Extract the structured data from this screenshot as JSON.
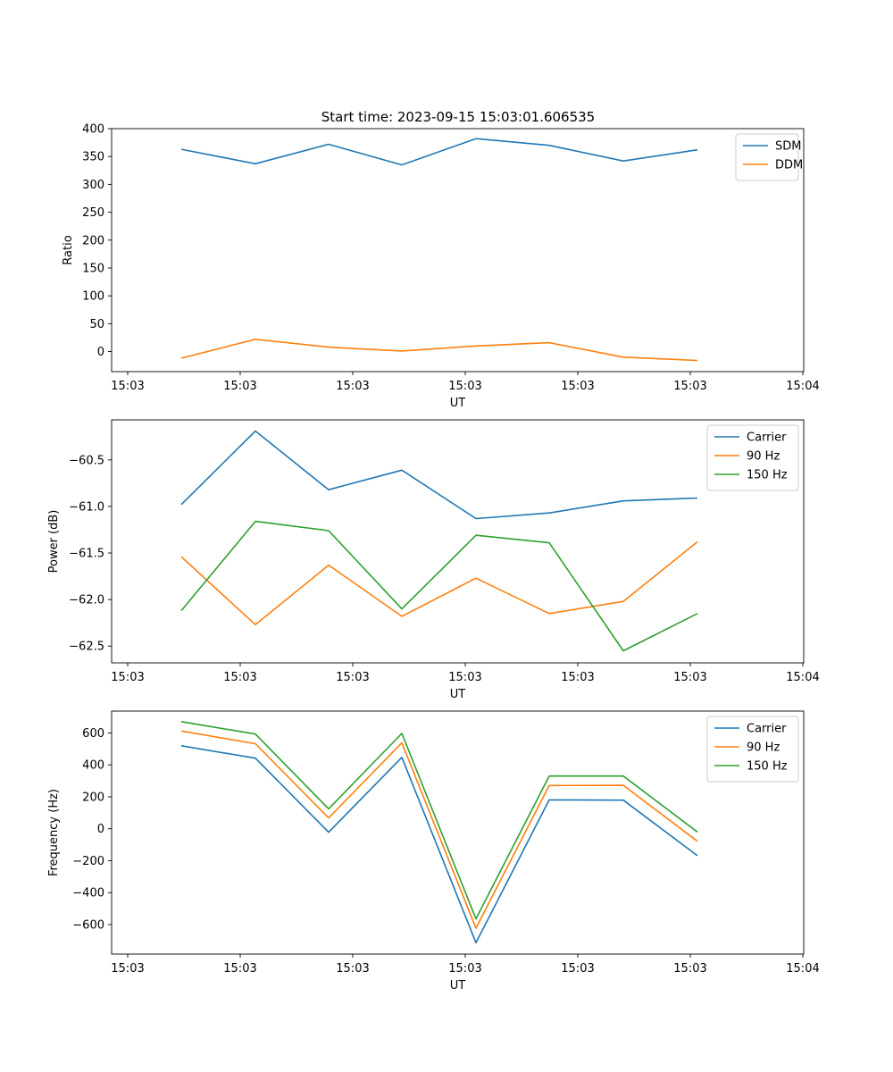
{
  "title": "Start time: 2023-09-15 15:03:01.606535",
  "chart_data": [
    {
      "type": "line",
      "xlabel": "UT",
      "ylabel": "Ratio",
      "xticks": [
        "15:03",
        "15:03",
        "15:03",
        "15:03",
        "15:03",
        "15:03",
        "15:04"
      ],
      "ylim": [
        -36,
        400
      ],
      "yticks": [
        0,
        50,
        100,
        150,
        200,
        250,
        300,
        350,
        400
      ],
      "legend": "top-right",
      "series": [
        {
          "name": "SDM",
          "color": "#1f77b4",
          "values": [
            363,
            337,
            372,
            335,
            382,
            370,
            342,
            362
          ]
        },
        {
          "name": "DDM",
          "color": "#ff7f0e",
          "values": [
            -12,
            22,
            8,
            1,
            10,
            16,
            -10,
            -16
          ]
        }
      ]
    },
    {
      "type": "line",
      "xlabel": "UT",
      "ylabel": "Power (dB)",
      "xticks": [
        "15:03",
        "15:03",
        "15:03",
        "15:03",
        "15:03",
        "15:03",
        "15:04"
      ],
      "ylim": [
        -62.68,
        -60.07
      ],
      "yticks": [
        -62.5,
        -62.0,
        -61.5,
        -61.0,
        -60.5
      ],
      "yfmt": 1,
      "legend": "top-right",
      "series": [
        {
          "name": "Carrier",
          "color": "#1f77b4",
          "values": [
            -60.98,
            -60.19,
            -60.82,
            -60.61,
            -61.13,
            -61.07,
            -60.94,
            -60.91
          ]
        },
        {
          "name": "90 Hz",
          "color": "#ff7f0e",
          "values": [
            -61.54,
            -62.27,
            -61.63,
            -62.18,
            -61.77,
            -62.15,
            -62.02,
            -61.38
          ]
        },
        {
          "name": "150 Hz",
          "color": "#2ca02c",
          "values": [
            -62.12,
            -61.16,
            -61.26,
            -62.1,
            -61.31,
            -61.39,
            -62.55,
            -62.15
          ]
        }
      ]
    },
    {
      "type": "line",
      "xlabel": "UT",
      "ylabel": "Frequency (Hz)",
      "xticks": [
        "15:03",
        "15:03",
        "15:03",
        "15:03",
        "15:03",
        "15:03",
        "15:04"
      ],
      "ylim": [
        -785,
        737
      ],
      "yticks": [
        -600,
        -400,
        -200,
        0,
        200,
        400,
        600
      ],
      "legend": "top-right",
      "series": [
        {
          "name": "Carrier",
          "color": "#1f77b4",
          "values": [
            520,
            442,
            -22,
            447,
            -714,
            181,
            179,
            -169
          ]
        },
        {
          "name": "90 Hz",
          "color": "#ff7f0e",
          "values": [
            612,
            533,
            68,
            538,
            -623,
            271,
            272,
            -78
          ]
        },
        {
          "name": "150 Hz",
          "color": "#2ca02c",
          "values": [
            671,
            593,
            125,
            597,
            -564,
            330,
            330,
            -20
          ]
        }
      ]
    }
  ]
}
